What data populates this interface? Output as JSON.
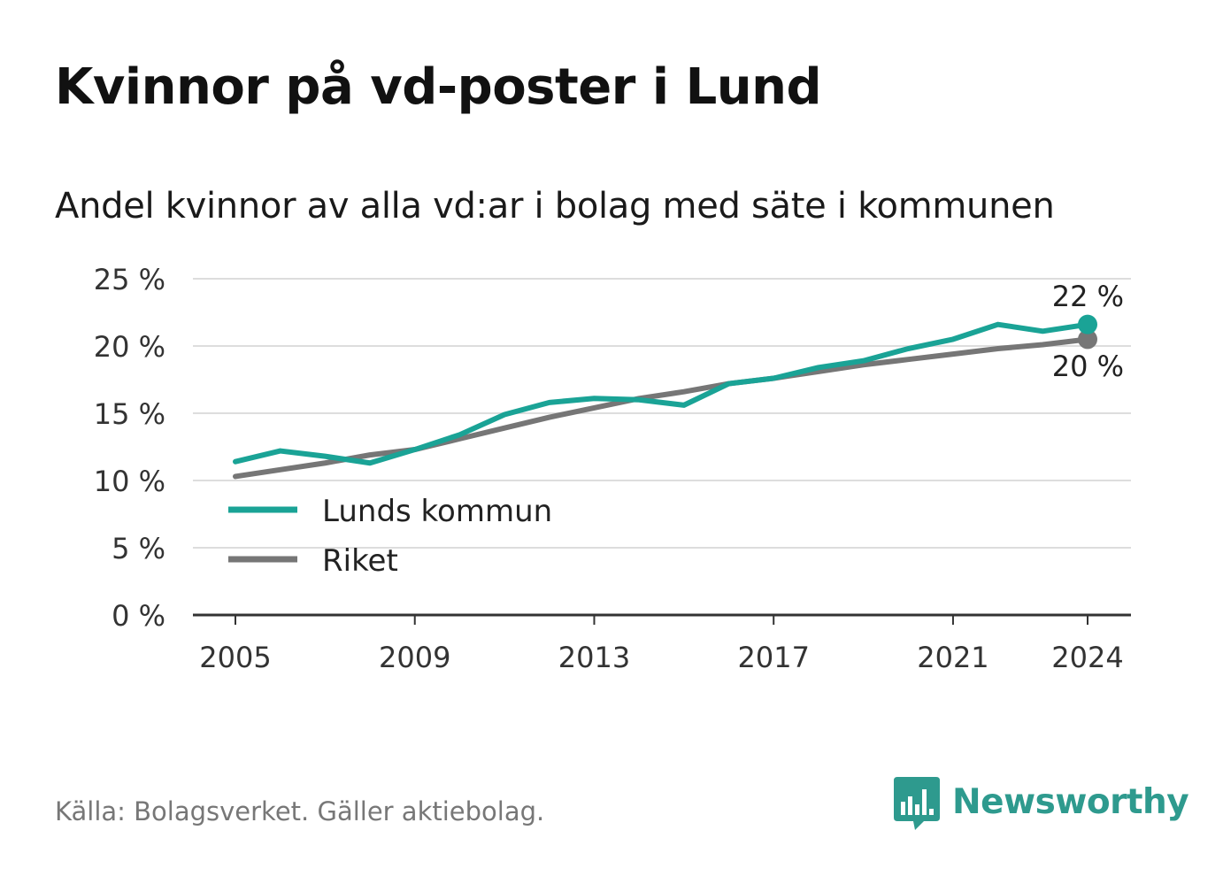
{
  "title": "Kvinnor på vd-poster i Lund",
  "subtitle": "Andel kvinnor av alla vd:ar i bolag med säte i kommunen",
  "source": "Källa: Bolagsverket. Gäller aktiebolag.",
  "brand": {
    "name": "Newsworthy",
    "icon": "newsworthy-logo-icon",
    "color": "#2e9a8e"
  },
  "chart_data": {
    "type": "line",
    "x": [
      2005,
      2006,
      2007,
      2008,
      2009,
      2010,
      2011,
      2012,
      2013,
      2014,
      2015,
      2016,
      2017,
      2018,
      2019,
      2020,
      2021,
      2022,
      2023,
      2024
    ],
    "x_ticks": [
      2005,
      2009,
      2013,
      2017,
      2021,
      2024
    ],
    "x_tick_labels": [
      "2005",
      "2009",
      "2013",
      "2017",
      "2021",
      "2024"
    ],
    "y_ticks": [
      0,
      5,
      10,
      15,
      20,
      25
    ],
    "y_tick_labels": [
      "0 %",
      "5 %",
      "10 %",
      "15 %",
      "20 %",
      "25 %"
    ],
    "ylim": [
      0,
      25
    ],
    "grid": true,
    "legend_position": "bottom-left",
    "series": [
      {
        "name": "Lunds kommun",
        "color": "#1aa396",
        "values": [
          11.4,
          12.2,
          11.8,
          11.3,
          12.3,
          13.4,
          14.9,
          15.8,
          16.1,
          16.0,
          15.6,
          17.2,
          17.6,
          18.4,
          18.9,
          19.8,
          20.5,
          21.6,
          21.1,
          21.6
        ],
        "end_label": "22 %"
      },
      {
        "name": "Riket",
        "color": "#767676",
        "values": [
          10.3,
          10.8,
          11.3,
          11.9,
          12.3,
          13.1,
          13.9,
          14.7,
          15.4,
          16.1,
          16.6,
          17.2,
          17.6,
          18.1,
          18.6,
          19.0,
          19.4,
          19.8,
          20.1,
          20.5
        ],
        "end_label": "20 %"
      }
    ]
  }
}
